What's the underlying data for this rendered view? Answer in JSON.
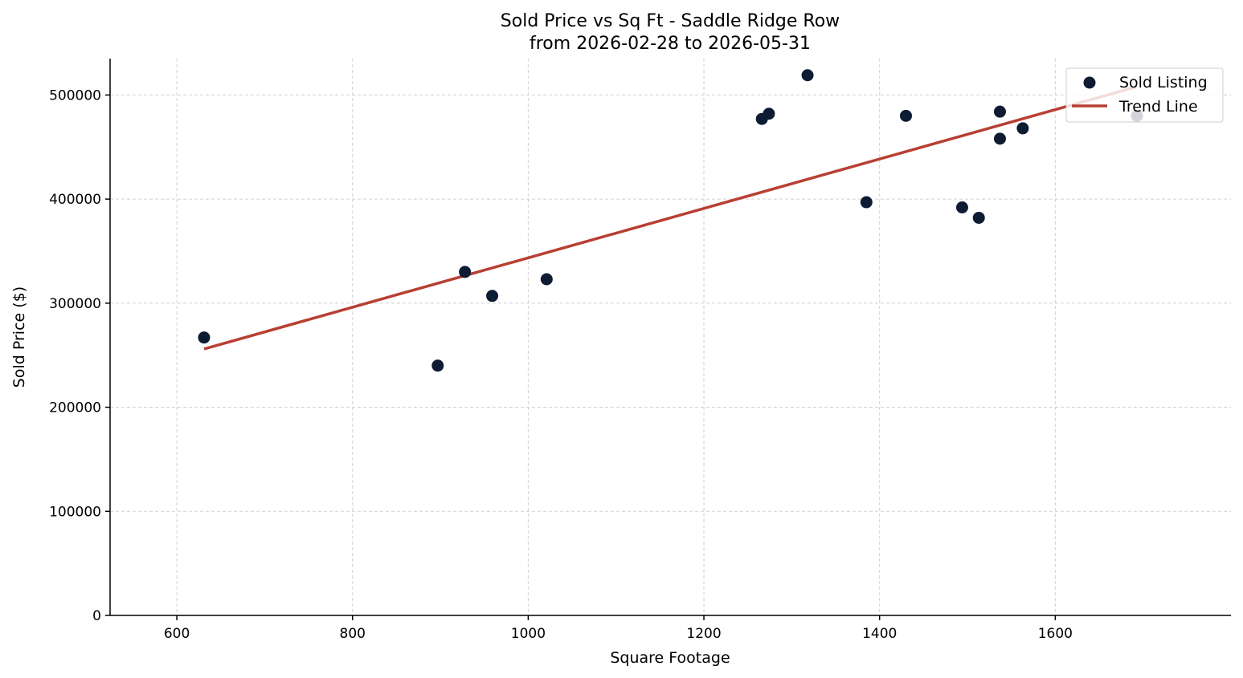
{
  "chart_data": {
    "type": "scatter",
    "title": "Sold Price vs Sq Ft - Saddle Ridge Row",
    "subtitle": "from 2026-02-28 to 2026-05-31",
    "xlabel": "Square Footage",
    "ylabel": "Sold Price ($)",
    "xlim": [
      524,
      1800
    ],
    "ylim": [
      0,
      535000
    ],
    "xticks": [
      600,
      800,
      1000,
      1200,
      1400,
      1600
    ],
    "xtick_labels": [
      "600",
      "800",
      "1000",
      "1200",
      "1400",
      "1600"
    ],
    "yticks": [
      0,
      100000,
      200000,
      300000,
      400000,
      500000
    ],
    "ytick_labels": [
      "0",
      "100000",
      "200000",
      "300000",
      "400000",
      "500000"
    ],
    "grid": true,
    "legend_position": "top-right",
    "series": [
      {
        "name": "Sold Listing",
        "kind": "scatter",
        "color": "#0d1b33",
        "points": [
          {
            "x": 631,
            "y": 267000
          },
          {
            "x": 897,
            "y": 240000
          },
          {
            "x": 928,
            "y": 330000
          },
          {
            "x": 959,
            "y": 307000
          },
          {
            "x": 1021,
            "y": 323000
          },
          {
            "x": 1266,
            "y": 477000
          },
          {
            "x": 1274,
            "y": 482000
          },
          {
            "x": 1318,
            "y": 519000
          },
          {
            "x": 1385,
            "y": 397000
          },
          {
            "x": 1430,
            "y": 480000
          },
          {
            "x": 1494,
            "y": 392000
          },
          {
            "x": 1513,
            "y": 382000
          },
          {
            "x": 1537,
            "y": 484000
          },
          {
            "x": 1537,
            "y": 458000
          },
          {
            "x": 1563,
            "y": 468000
          },
          {
            "x": 1693,
            "y": 480000
          }
        ]
      },
      {
        "name": "Trend Line",
        "kind": "line",
        "color": "#b83f33",
        "points": [
          {
            "x": 631,
            "y": 256000
          },
          {
            "x": 1693,
            "y": 508000
          }
        ]
      }
    ]
  }
}
